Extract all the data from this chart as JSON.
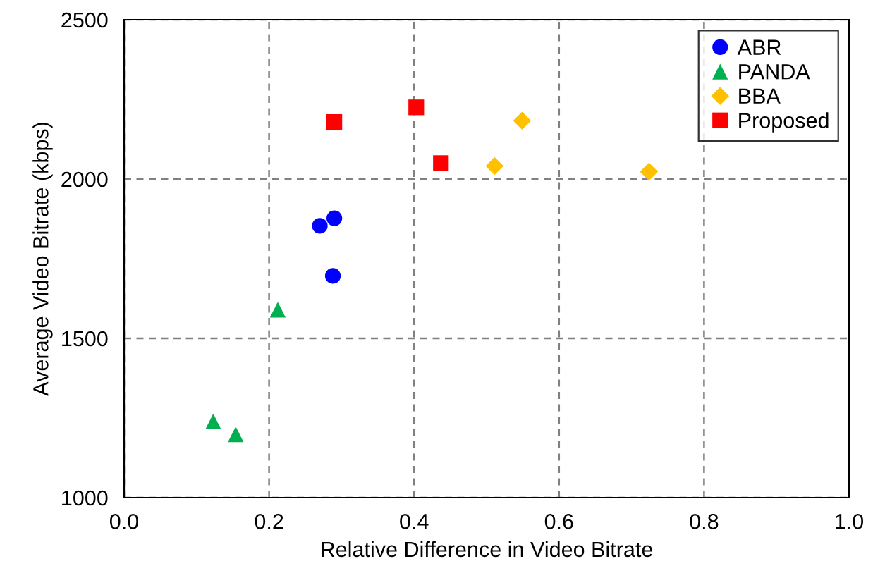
{
  "chart_data": {
    "type": "scatter",
    "xlabel": "Relative Difference in Video Bitrate",
    "ylabel": "Average Video Bitrate (kbps)",
    "xlim": [
      0,
      1
    ],
    "xticks": [
      {
        "value": 0,
        "label": "0.0"
      },
      {
        "value": 0.2,
        "label": "0.2"
      },
      {
        "value": 0.4,
        "label": "0.4"
      },
      {
        "value": 0.6,
        "label": "0.6"
      },
      {
        "value": 0.8,
        "label": "0.8"
      },
      {
        "value": 1,
        "label": "1.0"
      }
    ],
    "ylim": [
      1000,
      2500
    ],
    "yticks": [
      1000,
      1500,
      2000,
      2500
    ],
    "grid": true,
    "legend": "top right",
    "series": [
      {
        "name": "ABR",
        "color": "#0000ff",
        "marker": "circle",
        "x": [
          0.27,
          0.29,
          0.288
        ],
        "values": [
          1853,
          1877,
          1696
        ]
      },
      {
        "name": "PANDA",
        "color": "#00b050",
        "marker": "triangle",
        "x": [
          0.212,
          0.123,
          0.154
        ],
        "values": [
          1590,
          1239,
          1199
        ]
      },
      {
        "name": "BBA",
        "color": "#ffc000",
        "marker": "diamond",
        "x": [
          0.549,
          0.511,
          0.724
        ],
        "values": [
          2183,
          2041,
          2023
        ]
      },
      {
        "name": "Proposed",
        "color": "#ff0000",
        "marker": "square",
        "x": [
          0.29,
          0.403,
          0.437
        ],
        "values": [
          2179,
          2225,
          2050
        ]
      }
    ]
  }
}
